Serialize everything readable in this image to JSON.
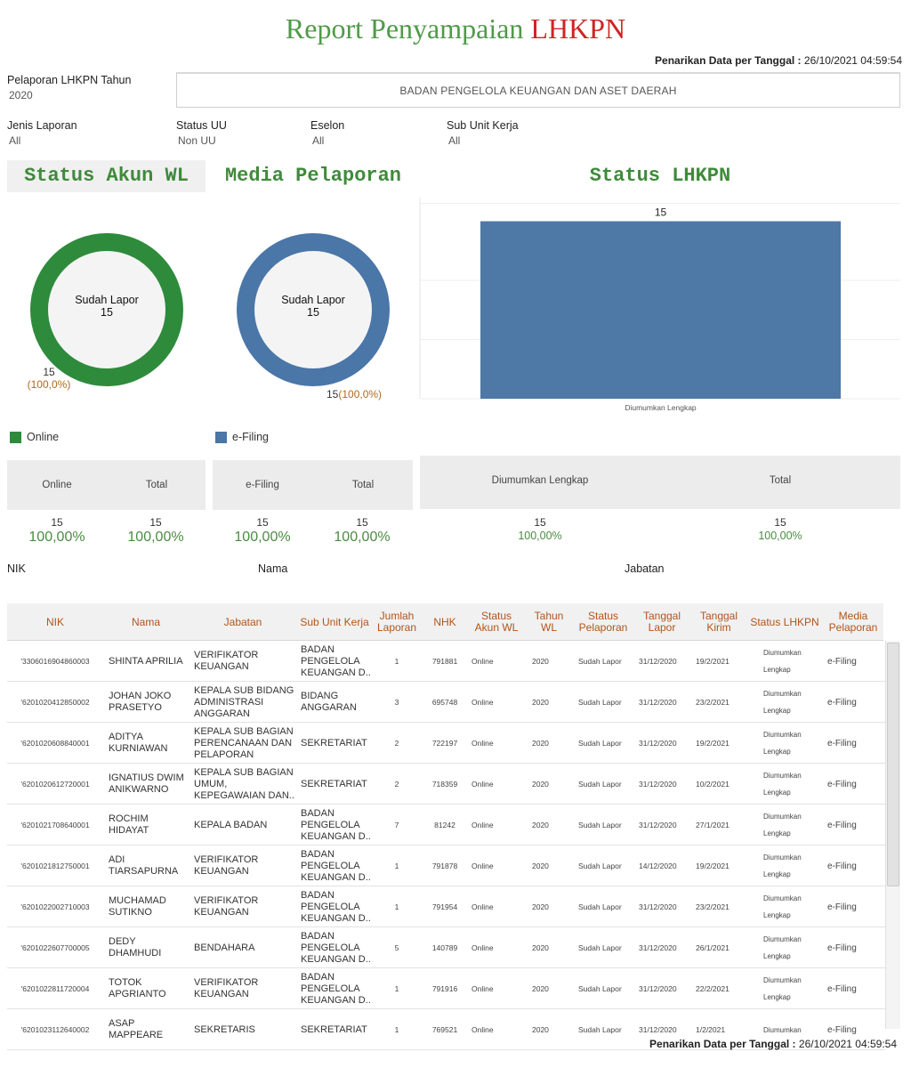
{
  "title": {
    "part1": "Report Penyampaian",
    "part2": "LHKPN"
  },
  "pull_date": {
    "label": "Penarikan Data per Tanggal :",
    "value": "26/10/2021 04:59:54"
  },
  "filters": {
    "tahun": {
      "label": "Pelaporan LHKPN Tahun",
      "value": "2020"
    },
    "unit": "BADAN PENGELOLA KEUANGAN DAN ASET DAERAH",
    "jenis": {
      "label": "Jenis Laporan",
      "value": "All"
    },
    "status_uu": {
      "label": "Status UU",
      "value": "Non UU"
    },
    "eselon": {
      "label": "Eselon",
      "value": "All"
    },
    "sub_unit": {
      "label": "Sub Unit Kerja",
      "value": "All"
    }
  },
  "sections": {
    "akun": "Status Akun WL",
    "media": "Media Pelaporan",
    "lhkpn": "Status LHKPN"
  },
  "donut_akun": {
    "center_label": "Sudah Lapor",
    "center_value": "15",
    "slice_count": "15",
    "slice_pct": "(100,0%)",
    "legend": "Online",
    "color": "#2e8b3c",
    "fraction": 1.0
  },
  "donut_media": {
    "center_label": "Sudah Lapor",
    "center_value": "15",
    "slice_count": "15",
    "slice_pct": "(100,0%)",
    "legend": "e-Filing",
    "color": "#4a76a8",
    "fraction": 1.0
  },
  "chart_data": {
    "type": "bar",
    "categories": [
      "Diumumkan Lengkap"
    ],
    "values": [
      15
    ],
    "data_labels": [
      "15"
    ],
    "title": "Status LHKPN",
    "ylim": [
      0,
      17
    ],
    "grid": true,
    "color": "#4e78a6"
  },
  "summary_akun": {
    "h1": "Online",
    "h2": "Total",
    "v1_count": "15",
    "v1_pct": "100,00%",
    "v2_count": "15",
    "v2_pct": "100,00%"
  },
  "summary_media": {
    "h1": "e-Filing",
    "h2": "Total",
    "v1_count": "15",
    "v1_pct": "100,00%",
    "v2_count": "15",
    "v2_pct": "100,00%"
  },
  "summary_lhkpn": {
    "h1": "Diumumkan Lengkap",
    "h2": "Total",
    "v1_count": "15",
    "v1_pct": "100,00%",
    "v2_count": "15",
    "v2_pct": "100,00%"
  },
  "field_headers": {
    "nik": "NIK",
    "nama": "Nama",
    "jabatan": "Jabatan"
  },
  "table": {
    "columns": [
      "NIK",
      "Nama",
      "Jabatan",
      "Sub Unit Kerja",
      "Jumlah Laporan",
      "NHK",
      "Status Akun WL",
      "Tahun WL",
      "Status Pelaporan",
      "Tanggal Lapor",
      "Tanggal Kirim",
      "Status LHKPN",
      "Media Pelaporan"
    ],
    "rows": [
      [
        "'3306016904860003",
        "SHINTA APRILIA",
        "VERIFIKATOR KEUANGAN",
        "BADAN PENGELOLA KEUANGAN D..",
        "1",
        "791881",
        "Online",
        "2020",
        "Sudah Lapor",
        "31/12/2020",
        "19/2/2021",
        "Diumumkan Lengkap",
        "e-Filing"
      ],
      [
        "'6201020412850002",
        "JOHAN JOKO PRASETYO",
        "KEPALA SUB BIDANG ADMINISTRASI ANGGARAN",
        "BIDANG ANGGARAN",
        "3",
        "695748",
        "Online",
        "2020",
        "Sudah Lapor",
        "31/12/2020",
        "23/2/2021",
        "Diumumkan Lengkap",
        "e-Filing"
      ],
      [
        "'6201020608840001",
        "ADITYA KURNIAWAN",
        "KEPALA SUB BAGIAN PERENCANAAN DAN PELAPORAN",
        "SEKRETARIAT",
        "2",
        "722197",
        "Online",
        "2020",
        "Sudah Lapor",
        "31/12/2020",
        "19/2/2021",
        "Diumumkan Lengkap",
        "e-Filing"
      ],
      [
        "'6201020612720001",
        "IGNATIUS DWIM ANIKWARNO",
        "KEPALA SUB BAGIAN UMUM, KEPEGAWAIAN DAN..",
        "SEKRETARIAT",
        "2",
        "718359",
        "Online",
        "2020",
        "Sudah Lapor",
        "31/12/2020",
        "10/2/2021",
        "Diumumkan Lengkap",
        "e-Filing"
      ],
      [
        "'6201021708640001",
        "ROCHIM HIDAYAT",
        "KEPALA BADAN",
        "BADAN PENGELOLA KEUANGAN D..",
        "7",
        "81242",
        "Online",
        "2020",
        "Sudah Lapor",
        "31/12/2020",
        "27/1/2021",
        "Diumumkan Lengkap",
        "e-Filing"
      ],
      [
        "'6201021812750001",
        "ADI TIARSAPURNA",
        "VERIFIKATOR KEUANGAN",
        "BADAN PENGELOLA KEUANGAN D..",
        "1",
        "791878",
        "Online",
        "2020",
        "Sudah Lapor",
        "14/12/2020",
        "19/2/2021",
        "Diumumkan Lengkap",
        "e-Filing"
      ],
      [
        "'6201022002710003",
        "MUCHAMAD SUTIKNO",
        "VERIFIKATOR KEUANGAN",
        "BADAN PENGELOLA KEUANGAN D..",
        "1",
        "791954",
        "Online",
        "2020",
        "Sudah Lapor",
        "31/12/2020",
        "23/2/2021",
        "Diumumkan Lengkap",
        "e-Filing"
      ],
      [
        "'6201022607700005",
        "DEDY DHAMHUDI",
        "BENDAHARA",
        "BADAN PENGELOLA KEUANGAN D..",
        "5",
        "140789",
        "Online",
        "2020",
        "Sudah Lapor",
        "31/12/2020",
        "26/1/2021",
        "Diumumkan Lengkap",
        "e-Filing"
      ],
      [
        "'6201022811720004",
        "TOTOK APGRIANTO",
        "VERIFIKATOR KEUANGAN",
        "BADAN PENGELOLA KEUANGAN D..",
        "1",
        "791916",
        "Online",
        "2020",
        "Sudah Lapor",
        "31/12/2020",
        "22/2/2021",
        "Diumumkan Lengkap",
        "e-Filing"
      ],
      [
        "'6201023112640002",
        "ASAP MAPPEARE",
        "SEKRETARIS",
        "SEKRETARIAT",
        "1",
        "769521",
        "Online",
        "2020",
        "Sudah Lapor",
        "31/12/2020",
        "1/2/2021",
        "Diumumkan",
        "e-Filing"
      ]
    ]
  }
}
